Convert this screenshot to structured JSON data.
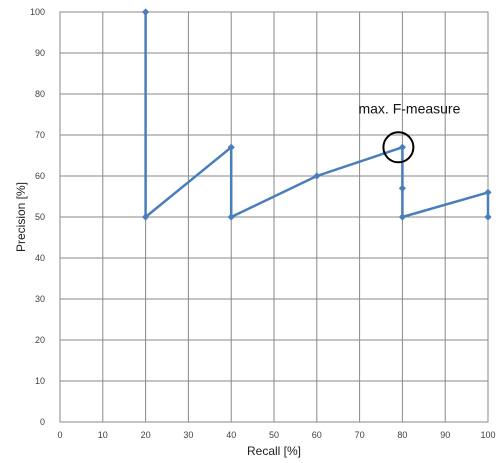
{
  "chart_data": {
    "type": "line",
    "title": "",
    "xlabel": "Recall [%]",
    "ylabel": "Precision [%]",
    "xlim": [
      0,
      100
    ],
    "ylim": [
      0,
      100
    ],
    "xticks": [
      0,
      10,
      20,
      30,
      40,
      50,
      60,
      70,
      80,
      90,
      100
    ],
    "yticks": [
      0,
      10,
      20,
      30,
      40,
      50,
      60,
      70,
      80,
      90,
      100
    ],
    "grid": true,
    "legend": "none",
    "series": [
      {
        "x": [
          20,
          20,
          40,
          40,
          60,
          80,
          80,
          80,
          100,
          100
        ],
        "y": [
          100,
          50,
          67,
          50,
          60,
          67,
          57,
          50,
          56,
          50
        ],
        "color": "#4a7ebb"
      }
    ],
    "annotations": [
      {
        "text": "max. F-measure",
        "x": 80,
        "y": 67,
        "marker": "circle"
      }
    ]
  },
  "colors": {
    "series": "#4a7ebb",
    "grid": "#898989",
    "annotation": "#000000"
  }
}
